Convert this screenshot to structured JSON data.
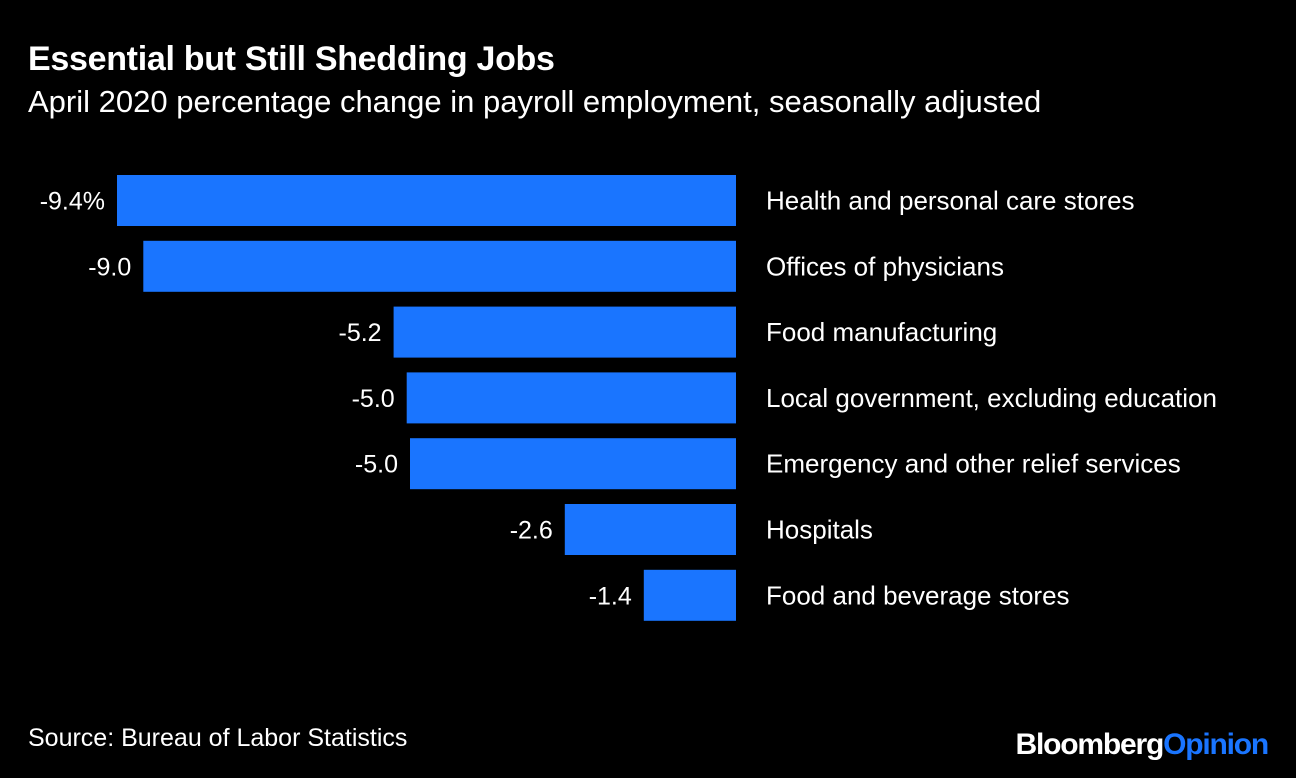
{
  "header": {
    "title": "Essential but Still Shedding Jobs",
    "subtitle": "April 2020 percentage change in payroll employment, seasonally adjusted"
  },
  "footer": {
    "source": "Source: Bureau of Labor Statistics",
    "brand_primary": "Bloomberg",
    "brand_secondary": "Opinion"
  },
  "colors": {
    "background": "#000000",
    "bar": "#1a75ff",
    "text": "#ffffff",
    "brand_accent": "#1a75ff"
  },
  "chart_data": {
    "type": "bar",
    "orientation": "horizontal",
    "title": "Essential but Still Shedding Jobs",
    "subtitle": "April 2020 percentage change in payroll employment, seasonally adjusted",
    "xlabel": "",
    "ylabel": "",
    "xlim": [
      -9.4,
      0
    ],
    "grid": false,
    "categories": [
      "Health and personal care stores",
      "Offices of physicians",
      "Food manufacturing",
      "Local government, excluding education",
      "Emergency and other relief services",
      "Hospitals",
      "Food and beverage stores"
    ],
    "values": [
      -9.4,
      -9.0,
      -5.2,
      -5.0,
      -4.95,
      -2.6,
      -1.4
    ],
    "value_labels": [
      "-9.4%",
      "-9.0",
      "-5.2",
      "-5.0",
      "-5.0",
      "-2.6",
      "-1.4"
    ]
  }
}
